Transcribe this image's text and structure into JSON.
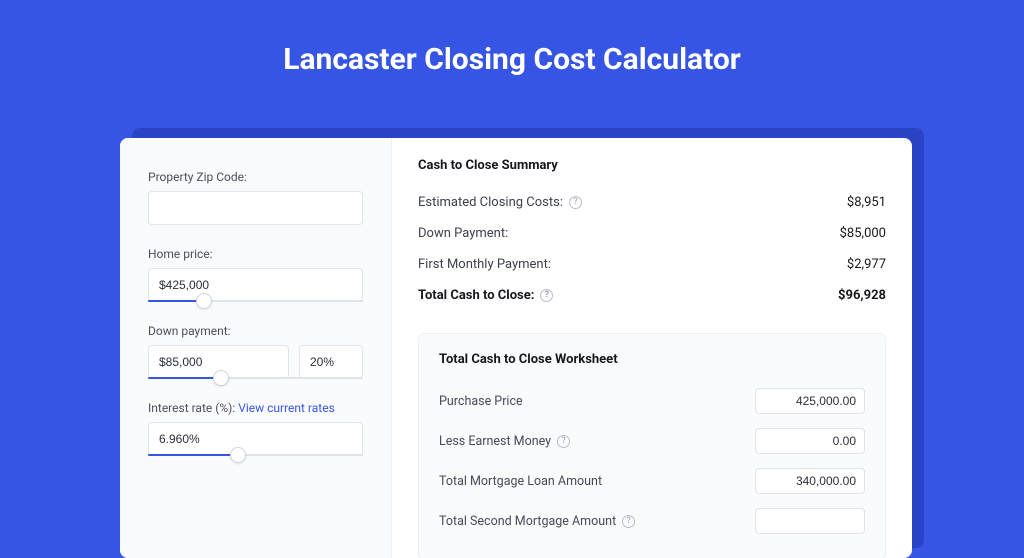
{
  "colors": {
    "page_bg": "#3655e5",
    "card_bg": "#ffffff",
    "card_shadow": "#2a44c5",
    "panel_bg": "#fafbfd",
    "border": "#e0e3ea",
    "text": "#24272e",
    "muted": "#4a4f5a",
    "link": "#3655e5",
    "slider_fill": "#3655e5"
  },
  "title": "Lancaster Closing Cost Calculator",
  "inputs": {
    "zip": {
      "label": "Property Zip Code:",
      "value": ""
    },
    "home_price": {
      "label": "Home price:",
      "value": "$425,000",
      "slider_pct": 26
    },
    "down_payment": {
      "label": "Down payment:",
      "value": "$85,000",
      "pct_value": "20%",
      "slider_pct": 34
    },
    "interest_rate": {
      "label": "Interest rate (%):",
      "link_text": "View current rates",
      "value": "6.960%",
      "slider_pct": 42
    }
  },
  "summary": {
    "title": "Cash to Close Summary",
    "rows": [
      {
        "label": "Estimated Closing Costs:",
        "help": true,
        "value": "$8,951",
        "bold": false
      },
      {
        "label": "Down Payment:",
        "help": false,
        "value": "$85,000",
        "bold": false
      },
      {
        "label": "First Monthly Payment:",
        "help": false,
        "value": "$2,977",
        "bold": false
      },
      {
        "label": "Total Cash to Close:",
        "help": true,
        "value": "$96,928",
        "bold": true
      }
    ]
  },
  "worksheet": {
    "title": "Total Cash to Close Worksheet",
    "rows": [
      {
        "label": "Purchase Price",
        "help": false,
        "value": "425,000.00"
      },
      {
        "label": "Less Earnest Money",
        "help": true,
        "value": "0.00"
      },
      {
        "label": "Total Mortgage Loan Amount",
        "help": false,
        "value": "340,000.00"
      },
      {
        "label": "Total Second Mortgage Amount",
        "help": true,
        "value": ""
      }
    ]
  }
}
